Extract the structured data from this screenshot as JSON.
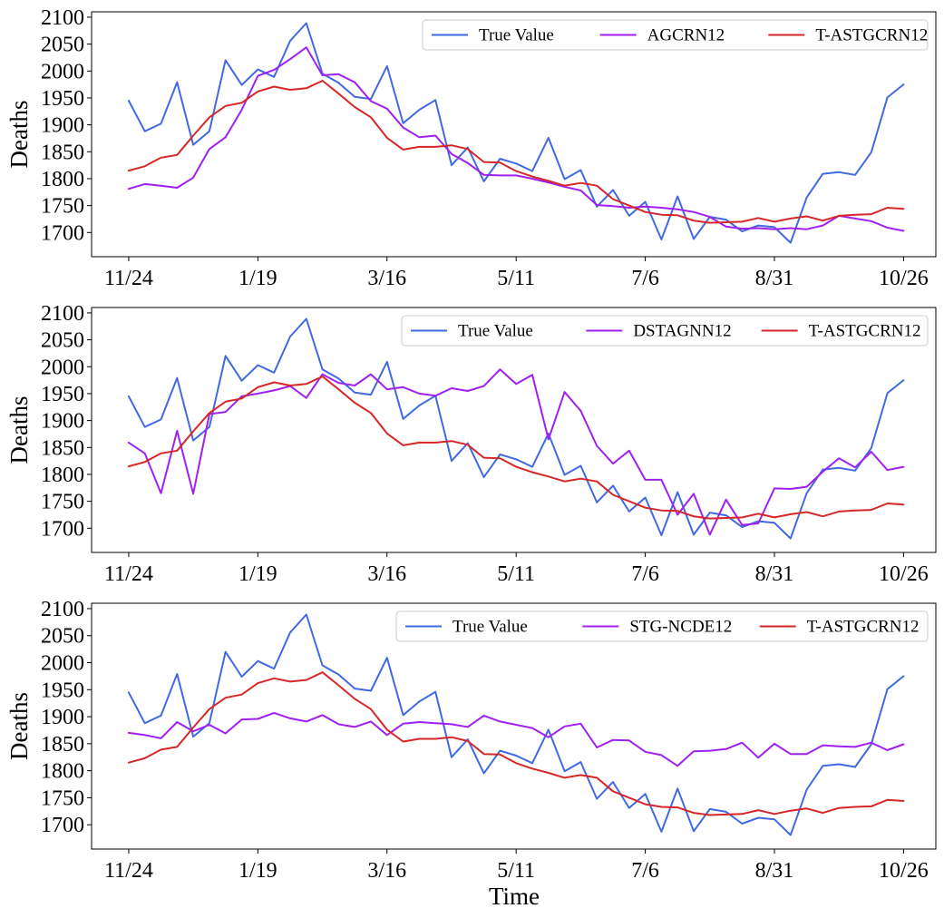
{
  "figure": {
    "xlabel": "Time"
  },
  "chart_data": [
    {
      "type": "line",
      "ylabel": "Deaths",
      "xlabel": "",
      "ylim": [
        1655,
        2110
      ],
      "xlim": [
        -2.3,
        50
      ],
      "yticks": [
        1700,
        1750,
        1800,
        1850,
        1900,
        1950,
        2000,
        2050,
        2100
      ],
      "xtick_positions": [
        0,
        8,
        16,
        24,
        32,
        40,
        48
      ],
      "xtick_labels": [
        "11/24",
        "1/19",
        "3/16",
        "5/11",
        "7/6",
        "8/31",
        "10/26"
      ],
      "legend": "top-right",
      "series": [
        {
          "name": "True Value",
          "color": "#4169E1",
          "values": [
            1945,
            1888,
            1902,
            1979,
            1863,
            1888,
            2020,
            1974,
            2003,
            1989,
            2056,
            2089,
            1995,
            1978,
            1952,
            1948,
            2009,
            1903,
            1928,
            1946,
            1825,
            1858,
            1795,
            1837,
            1828,
            1814,
            1876,
            1799,
            1816,
            1748,
            1779,
            1731,
            1757,
            1687,
            1767,
            1688,
            1729,
            1724,
            1702,
            1713,
            1710,
            1681,
            1765,
            1809,
            1812,
            1807,
            1849,
            1951,
            1975
          ]
        },
        {
          "name": "AGCRN12",
          "color": "#A020F0",
          "values": [
            1781,
            1790,
            1787,
            1783,
            1802,
            1855,
            1877,
            1928,
            1991,
            2002,
            2022,
            2044,
            1992,
            1994,
            1979,
            1944,
            1930,
            1895,
            1877,
            1880,
            1846,
            1829,
            1807,
            1806,
            1806,
            1800,
            1793,
            1785,
            1778,
            1751,
            1749,
            1746,
            1748,
            1746,
            1743,
            1738,
            1729,
            1711,
            1707,
            1708,
            1706,
            1708,
            1706,
            1713,
            1731,
            1726,
            1721,
            1709,
            1703
          ]
        },
        {
          "name": "T-ASTGCRN12",
          "color": "#D62728",
          "values": [
            1815,
            1823,
            1839,
            1844,
            1880,
            1914,
            1935,
            1941,
            1962,
            1971,
            1965,
            1968,
            1982,
            1958,
            1933,
            1914,
            1876,
            1854,
            1859,
            1859,
            1862,
            1855,
            1831,
            1830,
            1814,
            1804,
            1796,
            1787,
            1792,
            1787,
            1762,
            1750,
            1738,
            1733,
            1732,
            1722,
            1718,
            1719,
            1720,
            1727,
            1720,
            1726,
            1730,
            1722,
            1731,
            1733,
            1734,
            1746,
            1744
          ]
        }
      ]
    },
    {
      "type": "line",
      "ylabel": "Deaths",
      "xlabel": "",
      "ylim": [
        1655,
        2110
      ],
      "xlim": [
        -2.3,
        50
      ],
      "yticks": [
        1700,
        1750,
        1800,
        1850,
        1900,
        1950,
        2000,
        2050,
        2100
      ],
      "xtick_positions": [
        0,
        8,
        16,
        24,
        32,
        40,
        48
      ],
      "xtick_labels": [
        "11/24",
        "1/19",
        "3/16",
        "5/11",
        "7/6",
        "8/31",
        "10/26"
      ],
      "legend": "top-right",
      "series": [
        {
          "name": "True Value",
          "color": "#4169E1",
          "values": [
            1945,
            1888,
            1902,
            1979,
            1863,
            1888,
            2020,
            1974,
            2003,
            1989,
            2056,
            2089,
            1995,
            1978,
            1952,
            1948,
            2009,
            1903,
            1928,
            1946,
            1825,
            1858,
            1795,
            1837,
            1828,
            1814,
            1876,
            1799,
            1816,
            1748,
            1779,
            1731,
            1757,
            1687,
            1767,
            1688,
            1729,
            1724,
            1702,
            1713,
            1710,
            1681,
            1765,
            1809,
            1812,
            1807,
            1849,
            1951,
            1975
          ]
        },
        {
          "name": "DSTAGNN12",
          "color": "#A020F0",
          "values": [
            1859,
            1839,
            1765,
            1881,
            1764,
            1912,
            1916,
            1945,
            1950,
            1956,
            1964,
            1942,
            1986,
            1970,
            1965,
            1986,
            1958,
            1962,
            1950,
            1946,
            1960,
            1955,
            1964,
            1995,
            1968,
            1985,
            1865,
            1953,
            1918,
            1853,
            1820,
            1844,
            1790,
            1790,
            1725,
            1764,
            1688,
            1753,
            1706,
            1709,
            1774,
            1773,
            1777,
            1805,
            1830,
            1813,
            1842,
            1808,
            1814
          ]
        },
        {
          "name": "T-ASTGCRN12",
          "color": "#D62728",
          "values": [
            1815,
            1823,
            1839,
            1844,
            1880,
            1914,
            1935,
            1941,
            1962,
            1971,
            1965,
            1968,
            1982,
            1958,
            1933,
            1914,
            1876,
            1854,
            1859,
            1859,
            1862,
            1855,
            1831,
            1830,
            1814,
            1804,
            1796,
            1787,
            1792,
            1787,
            1762,
            1750,
            1738,
            1733,
            1732,
            1722,
            1718,
            1719,
            1720,
            1727,
            1720,
            1726,
            1730,
            1722,
            1731,
            1733,
            1734,
            1746,
            1744
          ]
        }
      ]
    },
    {
      "type": "line",
      "ylabel": "Deaths",
      "xlabel": "Time",
      "ylim": [
        1655,
        2110
      ],
      "xlim": [
        -2.3,
        50
      ],
      "yticks": [
        1700,
        1750,
        1800,
        1850,
        1900,
        1950,
        2000,
        2050,
        2100
      ],
      "xtick_positions": [
        0,
        8,
        16,
        24,
        32,
        40,
        48
      ],
      "xtick_labels": [
        "11/24",
        "1/19",
        "3/16",
        "5/11",
        "7/6",
        "8/31",
        "10/26"
      ],
      "legend": "top-right",
      "series": [
        {
          "name": "True Value",
          "color": "#4169E1",
          "values": [
            1945,
            1888,
            1902,
            1979,
            1863,
            1888,
            2020,
            1974,
            2003,
            1989,
            2056,
            2089,
            1995,
            1978,
            1952,
            1948,
            2009,
            1903,
            1928,
            1946,
            1825,
            1858,
            1795,
            1837,
            1828,
            1814,
            1876,
            1799,
            1816,
            1748,
            1779,
            1731,
            1757,
            1687,
            1767,
            1688,
            1729,
            1724,
            1702,
            1713,
            1710,
            1681,
            1765,
            1809,
            1812,
            1807,
            1849,
            1951,
            1975
          ]
        },
        {
          "name": "STG-NCDE12",
          "color": "#A020F0",
          "values": [
            1870,
            1866,
            1860,
            1890,
            1873,
            1885,
            1869,
            1895,
            1896,
            1907,
            1897,
            1891,
            1903,
            1886,
            1881,
            1891,
            1866,
            1887,
            1890,
            1888,
            1886,
            1881,
            1902,
            1891,
            1885,
            1879,
            1862,
            1882,
            1887,
            1843,
            1857,
            1856,
            1835,
            1829,
            1809,
            1836,
            1837,
            1840,
            1852,
            1824,
            1850,
            1831,
            1831,
            1847,
            1845,
            1844,
            1852,
            1838,
            1849
          ]
        },
        {
          "name": "T-ASTGCRN12",
          "color": "#D62728",
          "values": [
            1815,
            1823,
            1839,
            1844,
            1880,
            1914,
            1935,
            1941,
            1962,
            1971,
            1965,
            1968,
            1982,
            1958,
            1933,
            1914,
            1876,
            1854,
            1859,
            1859,
            1862,
            1855,
            1831,
            1830,
            1814,
            1804,
            1796,
            1787,
            1792,
            1787,
            1762,
            1750,
            1738,
            1733,
            1732,
            1722,
            1718,
            1719,
            1720,
            1727,
            1720,
            1726,
            1730,
            1722,
            1731,
            1733,
            1734,
            1746,
            1744
          ]
        }
      ]
    }
  ]
}
